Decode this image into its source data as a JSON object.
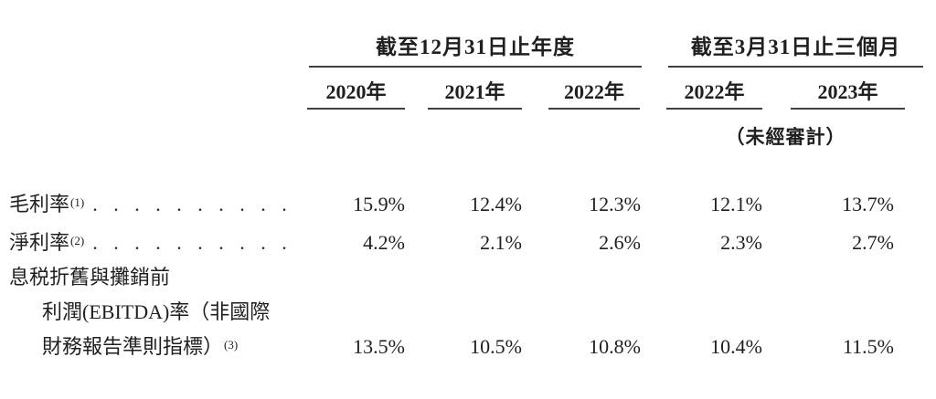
{
  "colors": {
    "background": "#ffffff",
    "text": "#1f1f1f",
    "rule": "#404040"
  },
  "header": {
    "groups": [
      {
        "title": "截至12月31日止年度"
      },
      {
        "title": "截至3月31日止三個月"
      }
    ],
    "year_columns": [
      "2020年",
      "2021年",
      "2022年",
      "2022年",
      "2023年"
    ],
    "unaudited_note": "（未經審計）"
  },
  "rows": [
    {
      "label": "毛利率",
      "footnote": "(1)",
      "values": [
        "15.9%",
        "12.4%",
        "12.3%",
        "12.1%",
        "13.7%"
      ]
    },
    {
      "label": "淨利率",
      "footnote": "(2)",
      "values": [
        "4.2%",
        "2.1%",
        "2.6%",
        "2.3%",
        "2.7%"
      ]
    },
    {
      "label_lines": [
        "息税折舊與攤銷前",
        "利潤(EBITDA)率（非國際",
        "財務報告準則指標）"
      ],
      "footnote": "(3)",
      "values": [
        "13.5%",
        "10.5%",
        "10.8%",
        "10.4%",
        "11.5%"
      ]
    }
  ]
}
